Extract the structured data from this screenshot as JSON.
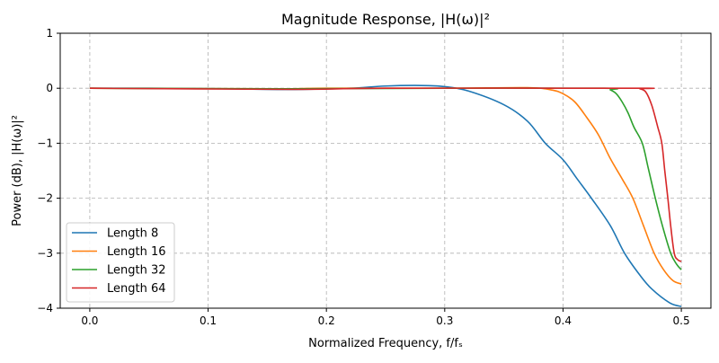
{
  "chart_data": {
    "type": "line",
    "title": "Magnitude Response, |H(ω)|²",
    "xlabel": "Normalized Frequency, f/fₛ",
    "ylabel": "Power (dB), |H(ω)|²",
    "xlim": [
      -0.025,
      0.525
    ],
    "ylim": [
      -4,
      1
    ],
    "xticks": [
      0.0,
      0.1,
      0.2,
      0.3,
      0.4,
      0.5
    ],
    "xtick_labels": [
      "0.0",
      "0.1",
      "0.2",
      "0.3",
      "0.4",
      "0.5"
    ],
    "yticks": [
      1,
      0,
      -1,
      -2,
      -3,
      -4
    ],
    "ytick_labels": [
      "1",
      "0",
      "−1",
      "−2",
      "−3",
      "−4"
    ],
    "grid": true,
    "legend_position": "lower-left",
    "series": [
      {
        "name": "Length 8",
        "color": "#1f77b4",
        "x": [
          0,
          0.05,
          0.1,
          0.15,
          0.18,
          0.22,
          0.25,
          0.28,
          0.3,
          0.32,
          0.35,
          0.37,
          0.385,
          0.4,
          0.412,
          0.424,
          0.44,
          0.452,
          0.465,
          0.475,
          0.49,
          0.5
        ],
        "y": [
          0,
          0,
          -0.005,
          -0.02,
          -0.02,
          0,
          0.04,
          0.05,
          0.03,
          -0.05,
          -0.3,
          -0.6,
          -1.0,
          -1.3,
          -1.65,
          -2.0,
          -2.5,
          -3.0,
          -3.4,
          -3.65,
          -3.9,
          -3.97
        ]
      },
      {
        "name": "Length 16",
        "color": "#ff7f0e",
        "x": [
          0,
          0.15,
          0.2,
          0.3,
          0.37,
          0.39,
          0.4,
          0.41,
          0.42,
          0.43,
          0.44,
          0.45,
          0.459,
          0.468,
          0.477,
          0.485,
          0.493,
          0.5
        ],
        "y": [
          0,
          -0.01,
          0,
          0,
          0.01,
          -0.03,
          -0.1,
          -0.25,
          -0.53,
          -0.85,
          -1.28,
          -1.65,
          -2.0,
          -2.5,
          -3.0,
          -3.3,
          -3.5,
          -3.56
        ]
      },
      {
        "name": "Length 32",
        "color": "#2ca02c",
        "x": [
          0,
          0.17,
          0.3,
          0.435,
          0.44,
          0.445,
          0.45,
          0.455,
          0.46,
          0.467,
          0.472,
          0.478,
          0.484,
          0.491,
          0.496,
          0.5
        ],
        "y": [
          0,
          -0.01,
          0,
          0,
          -0.03,
          -0.1,
          -0.25,
          -0.45,
          -0.71,
          -1.0,
          -1.45,
          -2.0,
          -2.5,
          -3.0,
          -3.2,
          -3.3
        ]
      },
      {
        "name": "Length 64",
        "color": "#d62728",
        "x": [
          0,
          0.17,
          0.25,
          0.46,
          0.465,
          0.47,
          0.475,
          0.48,
          0.4835,
          0.486,
          0.4886,
          0.491,
          0.494,
          0.497,
          0.5
        ],
        "y": [
          0,
          -0.02,
          0,
          0,
          -0.01,
          -0.07,
          -0.31,
          -0.7,
          -1.0,
          -1.5,
          -2.0,
          -2.5,
          -3.0,
          -3.12,
          -3.15
        ]
      }
    ]
  }
}
